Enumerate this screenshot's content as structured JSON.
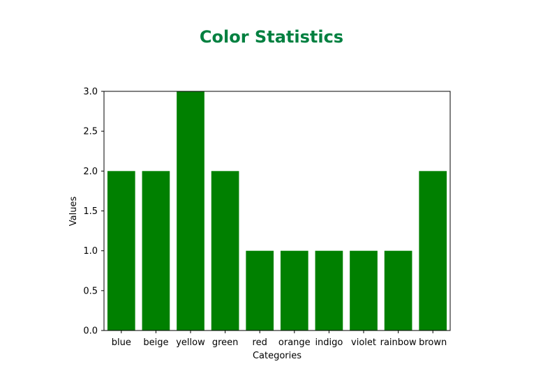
{
  "chart_data": {
    "type": "bar",
    "title": "Color Statistics",
    "xlabel": "Categories",
    "ylabel": "Values",
    "categories": [
      "blue",
      "beige",
      "yellow",
      "green",
      "red",
      "orange",
      "indigo",
      "violet",
      "rainbow",
      "brown"
    ],
    "values": [
      2,
      2,
      3,
      2,
      1,
      1,
      1,
      1,
      1,
      2
    ],
    "ylim": [
      0,
      3
    ],
    "yticks": [
      "0.0",
      "0.5",
      "1.0",
      "1.5",
      "2.0",
      "2.5",
      "3.0"
    ],
    "grid": false,
    "legend": "none",
    "bar_color": "#008000",
    "title_color": "#008040"
  }
}
